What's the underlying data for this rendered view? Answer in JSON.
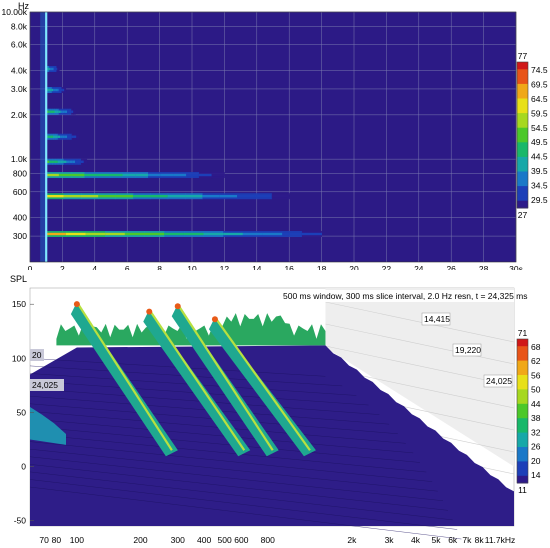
{
  "chart_data": [
    {
      "type": "heatmap",
      "ylabel": "Hz",
      "y_scale": "log",
      "ylim": [
        200,
        10000
      ],
      "xlim": [
        0,
        30
      ],
      "y_ticks": [
        300,
        400,
        600,
        800,
        1000,
        2000,
        3000,
        4000,
        6000,
        8000,
        10000
      ],
      "y_tick_labels": [
        "300",
        "400",
        "600",
        "800",
        "1.0k",
        "2.0k",
        "3.0k",
        "4.0k",
        "6.0k",
        "8.0k",
        "10.00k"
      ],
      "x_ticks": [
        0,
        2,
        4,
        6,
        8,
        10,
        12,
        14,
        16,
        18,
        20,
        22,
        24,
        26,
        28,
        30
      ],
      "x_tick_labels": [
        "0",
        "2",
        "4",
        "6",
        "8",
        "10",
        "12",
        "14",
        "16",
        "18",
        "20",
        "22",
        "24",
        "26",
        "28",
        "30s"
      ],
      "colorbar": {
        "max": "77",
        "min": "27",
        "labels": [
          "74.5",
          "69.5",
          "64.5",
          "59.5",
          "54.5",
          "49.5",
          "44.5",
          "39.5",
          "34.5",
          "29.5"
        ]
      },
      "grid": true,
      "bands": [
        {
          "freq": 310,
          "start": 1.0,
          "end": 18,
          "intensity": 0.75
        },
        {
          "freq": 560,
          "start": 1.0,
          "end": 16,
          "intensity": 0.65
        },
        {
          "freq": 780,
          "start": 1.0,
          "end": 12,
          "intensity": 0.55
        },
        {
          "freq": 960,
          "start": 1.0,
          "end": 3.5,
          "intensity": 0.45
        },
        {
          "freq": 1420,
          "start": 1.0,
          "end": 3.0,
          "intensity": 0.42
        },
        {
          "freq": 2100,
          "start": 1.0,
          "end": 2.8,
          "intensity": 0.45
        },
        {
          "freq": 2950,
          "start": 1.0,
          "end": 2.2,
          "intensity": 0.35
        },
        {
          "freq": 4100,
          "start": 1.0,
          "end": 1.8,
          "intensity": 0.32
        }
      ],
      "onset_line_x": 1.0
    },
    {
      "type": "area",
      "ylabel": "SPL",
      "x_scale": "log",
      "xlim": [
        60,
        11700
      ],
      "ylim": [
        -55,
        165
      ],
      "y_ticks": [
        -50,
        0,
        50,
        100,
        150
      ],
      "x_ticks": [
        70,
        80,
        100,
        200,
        300,
        400,
        500,
        600,
        800,
        2000,
        3000,
        4000,
        5000,
        6000,
        7000,
        8000,
        11700
      ],
      "x_tick_labels": [
        "70",
        "80",
        "100",
        "200",
        "300",
        "400",
        "500",
        "600",
        "800",
        "2k",
        "3k",
        "4k",
        "5k",
        "6k",
        "7k",
        "8k",
        "11.7kHz"
      ],
      "annotation": "500 ms window, 300 ms slice interval, 2.0 Hz resn, t = 24,325 ms",
      "time_labels": [
        "14,415",
        "19,220",
        "24,025"
      ],
      "left_labels": [
        "20",
        "24,025"
      ],
      "colorbar": {
        "max": "71",
        "min": "11",
        "labels": [
          "68",
          "62",
          "56",
          "50",
          "44",
          "38",
          "32",
          "26",
          "20",
          "14"
        ]
      },
      "ridges": [
        {
          "freq": 100,
          "peak": 152
        },
        {
          "freq": 220,
          "peak": 145
        },
        {
          "freq": 300,
          "peak": 150
        },
        {
          "freq": 450,
          "peak": 138
        }
      ]
    }
  ]
}
